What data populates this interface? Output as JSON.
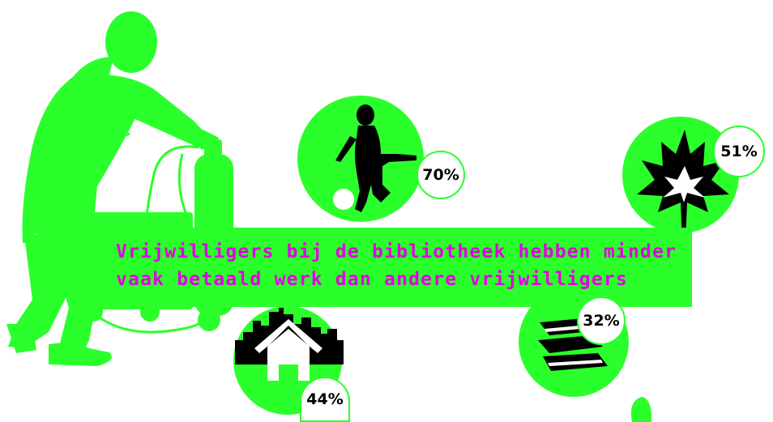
{
  "headline": {
    "line1": "Vrijwilligers bij de bibliotheek hebben minder",
    "line2": "vaak betaald werk dan andere vrijwilligers"
  },
  "stats": {
    "child": "70%",
    "leaf": "51%",
    "city": "44%",
    "books": "32%"
  },
  "colors": {
    "accent_green": "#2bff2b",
    "title_magenta": "#e000e0",
    "silhouette": "#000000",
    "background": "#ffffff"
  },
  "icons": [
    "worker-silhouette",
    "child-playing-ball-icon",
    "maple-leaf-icon",
    "city-house-icon",
    "books-icon"
  ]
}
